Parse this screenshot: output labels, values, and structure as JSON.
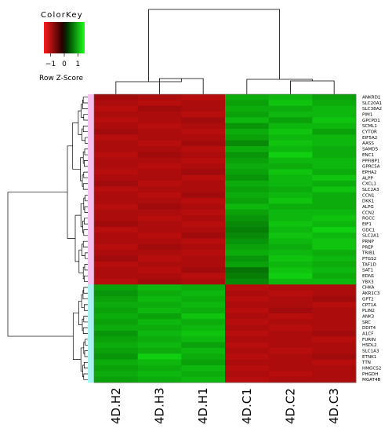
{
  "chart_data": {
    "type": "heatmap",
    "title": "",
    "columns": [
      "4D.H2",
      "4D.H3",
      "4D.H1",
      "4D.C1",
      "4D.C2",
      "4D.C3"
    ],
    "rows": [
      "ANKRD1",
      "SLC20A1",
      "SLC38A2",
      "PIM1",
      "GPCPD1",
      "SCML1",
      "CYTOR",
      "EIF5A2",
      "AASS",
      "SAMD5",
      "ENC1",
      "PPFIBP1",
      "GPRC5A",
      "EPHA2",
      "ALPP",
      "CXCL1",
      "SLC2A3",
      "CCN1",
      "DKK1",
      "ALPG",
      "CCN2",
      "RGCC",
      "EIF1",
      "ODC1",
      "SLC2A1",
      "PRNP",
      "PREP",
      "TRIB1",
      "PTGS2",
      "TAF1D",
      "SAT1",
      "EDN1",
      "YBX3",
      "CHKA",
      "AKR1C3",
      "GPT2",
      "CPT1A",
      "PLIN2",
      "ANK3",
      "SRC",
      "DDIT4",
      "A1CF",
      "FURIN",
      "HSDL2",
      "SLC1A3",
      "ETNK1",
      "TTN",
      "HMGCS2",
      "PHGDH",
      "MGAT4B"
    ],
    "values": [
      [
        -0.8,
        -0.9,
        -1.0,
        0.9,
        1.0,
        0.8
      ],
      [
        -0.9,
        -1.0,
        -0.9,
        0.8,
        1.1,
        0.9
      ],
      [
        -1.0,
        -0.8,
        -0.9,
        0.9,
        0.9,
        1.0
      ],
      [
        -0.9,
        -0.9,
        -1.0,
        0.8,
        1.0,
        1.0
      ],
      [
        -1.0,
        -0.9,
        -0.8,
        1.0,
        0.8,
        1.1
      ],
      [
        -0.9,
        -1.0,
        -0.9,
        0.7,
        1.0,
        1.0
      ],
      [
        -0.8,
        -0.9,
        -1.0,
        0.9,
        1.1,
        0.8
      ],
      [
        -1.0,
        -0.9,
        -0.9,
        0.8,
        1.0,
        1.0
      ],
      [
        -0.9,
        -1.0,
        -0.8,
        0.6,
        1.1,
        1.0
      ],
      [
        -0.9,
        -0.9,
        -1.0,
        0.9,
        1.0,
        0.9
      ],
      [
        -1.0,
        -0.8,
        -0.9,
        0.7,
        1.2,
        0.9
      ],
      [
        -0.9,
        -0.9,
        -1.0,
        0.8,
        1.0,
        1.0
      ],
      [
        -0.9,
        -1.0,
        -0.9,
        0.9,
        0.9,
        1.0
      ],
      [
        -1.0,
        -0.9,
        -0.8,
        0.8,
        1.1,
        0.9
      ],
      [
        -0.9,
        -0.9,
        -1.0,
        0.7,
        1.0,
        1.1
      ],
      [
        -0.8,
        -1.0,
        -0.9,
        0.9,
        1.0,
        0.9
      ],
      [
        -1.0,
        -0.9,
        -0.9,
        0.8,
        0.9,
        1.1
      ],
      [
        -0.9,
        -1.0,
        -0.8,
        0.9,
        1.0,
        0.9
      ],
      [
        -0.9,
        -0.9,
        -1.0,
        0.8,
        1.1,
        0.9
      ],
      [
        -1.0,
        -0.8,
        -0.9,
        1.0,
        0.9,
        0.9
      ],
      [
        -0.9,
        -0.9,
        -1.0,
        0.8,
        1.0,
        1.0
      ],
      [
        -0.9,
        -1.0,
        -0.9,
        0.7,
        1.0,
        1.1
      ],
      [
        -0.8,
        -0.9,
        -1.0,
        0.6,
        1.1,
        1.0
      ],
      [
        -1.0,
        -0.9,
        -0.9,
        0.5,
        1.0,
        1.2
      ],
      [
        -0.9,
        -1.0,
        -0.8,
        0.6,
        1.1,
        1.0
      ],
      [
        -0.9,
        -0.9,
        -1.0,
        0.7,
        1.0,
        1.1
      ],
      [
        -1.0,
        -0.8,
        -0.9,
        0.8,
        0.9,
        1.1
      ],
      [
        -0.9,
        -0.9,
        -1.0,
        0.9,
        1.0,
        0.9
      ],
      [
        -0.8,
        -1.0,
        -0.9,
        0.7,
        1.1,
        1.0
      ],
      [
        -1.0,
        -0.9,
        -0.9,
        0.8,
        1.0,
        0.9
      ],
      [
        -0.9,
        -1.0,
        -0.8,
        0.4,
        1.1,
        1.0
      ],
      [
        -0.9,
        -0.9,
        -1.0,
        0.5,
        1.2,
        0.9
      ],
      [
        -1.0,
        -0.8,
        -0.9,
        0.6,
        1.0,
        1.0
      ],
      [
        0.8,
        1.0,
        0.9,
        -1.0,
        -0.9,
        -0.9
      ],
      [
        0.7,
        0.9,
        1.0,
        -0.9,
        -1.0,
        -0.9
      ],
      [
        0.8,
        1.0,
        0.9,
        -1.0,
        -0.9,
        -0.8
      ],
      [
        0.9,
        0.9,
        1.0,
        -0.9,
        -0.9,
        -1.0
      ],
      [
        0.8,
        1.0,
        0.9,
        -1.0,
        -0.8,
        -0.9
      ],
      [
        0.9,
        0.8,
        1.1,
        -0.9,
        -1.0,
        -0.9
      ],
      [
        0.8,
        1.0,
        0.9,
        -1.0,
        -0.9,
        -0.9
      ],
      [
        0.9,
        0.9,
        1.0,
        -0.9,
        -1.0,
        -0.9
      ],
      [
        0.7,
        1.0,
        1.1,
        -1.0,
        -0.9,
        -0.8
      ],
      [
        0.8,
        0.9,
        1.0,
        -0.9,
        -0.9,
        -1.0
      ],
      [
        0.9,
        1.0,
        0.8,
        -1.0,
        -0.9,
        -0.9
      ],
      [
        0.8,
        0.9,
        1.0,
        -0.9,
        -1.0,
        -0.9
      ],
      [
        0.7,
        1.2,
        0.9,
        -1.0,
        -0.9,
        -0.8
      ],
      [
        0.9,
        1.0,
        0.8,
        -0.9,
        -0.9,
        -1.0
      ],
      [
        0.8,
        0.9,
        1.0,
        -1.0,
        -0.9,
        -0.9
      ],
      [
        0.9,
        1.0,
        0.9,
        -0.9,
        -1.0,
        -0.9
      ],
      [
        0.8,
        0.9,
        1.0,
        -1.0,
        -0.9,
        -0.9
      ]
    ],
    "row_side_colors": {
      "labels": [
        "pink",
        "pink",
        "pink",
        "pink",
        "pink",
        "pink",
        "pink",
        "pink",
        "pink",
        "pink",
        "pink",
        "pink",
        "pink",
        "pink",
        "pink",
        "pink",
        "pink",
        "pink",
        "pink",
        "pink",
        "pink",
        "pink",
        "pink",
        "pink",
        "pink",
        "pink",
        "pink",
        "pink",
        "pink",
        "pink",
        "pink",
        "pink",
        "pink",
        "cyan",
        "cyan",
        "cyan",
        "cyan",
        "cyan",
        "cyan",
        "cyan",
        "cyan",
        "cyan",
        "cyan",
        "cyan",
        "cyan",
        "cyan",
        "cyan",
        "cyan",
        "cyan",
        "cyan"
      ],
      "pink": "#f5c2f0",
      "cyan": "#a8f2f2"
    },
    "color_scale": {
      "low": "#ff0000",
      "mid": "#000000",
      "high": "#00ff00",
      "range": [
        -1.5,
        1.5
      ]
    },
    "color_key": {
      "title": "ColorKey",
      "xlabel": "Row Z-Score",
      "ticks": [
        -1,
        0,
        1
      ],
      "tick_labels": [
        "−1",
        "0",
        "1"
      ]
    },
    "column_clusters": [
      [
        "4D.H2",
        "4D.H3",
        "4D.H1"
      ],
      [
        "4D.C1",
        "4D.C2",
        "4D.C3"
      ]
    ],
    "row_clusters": 2,
    "grid": false,
    "legend": "top-left"
  }
}
